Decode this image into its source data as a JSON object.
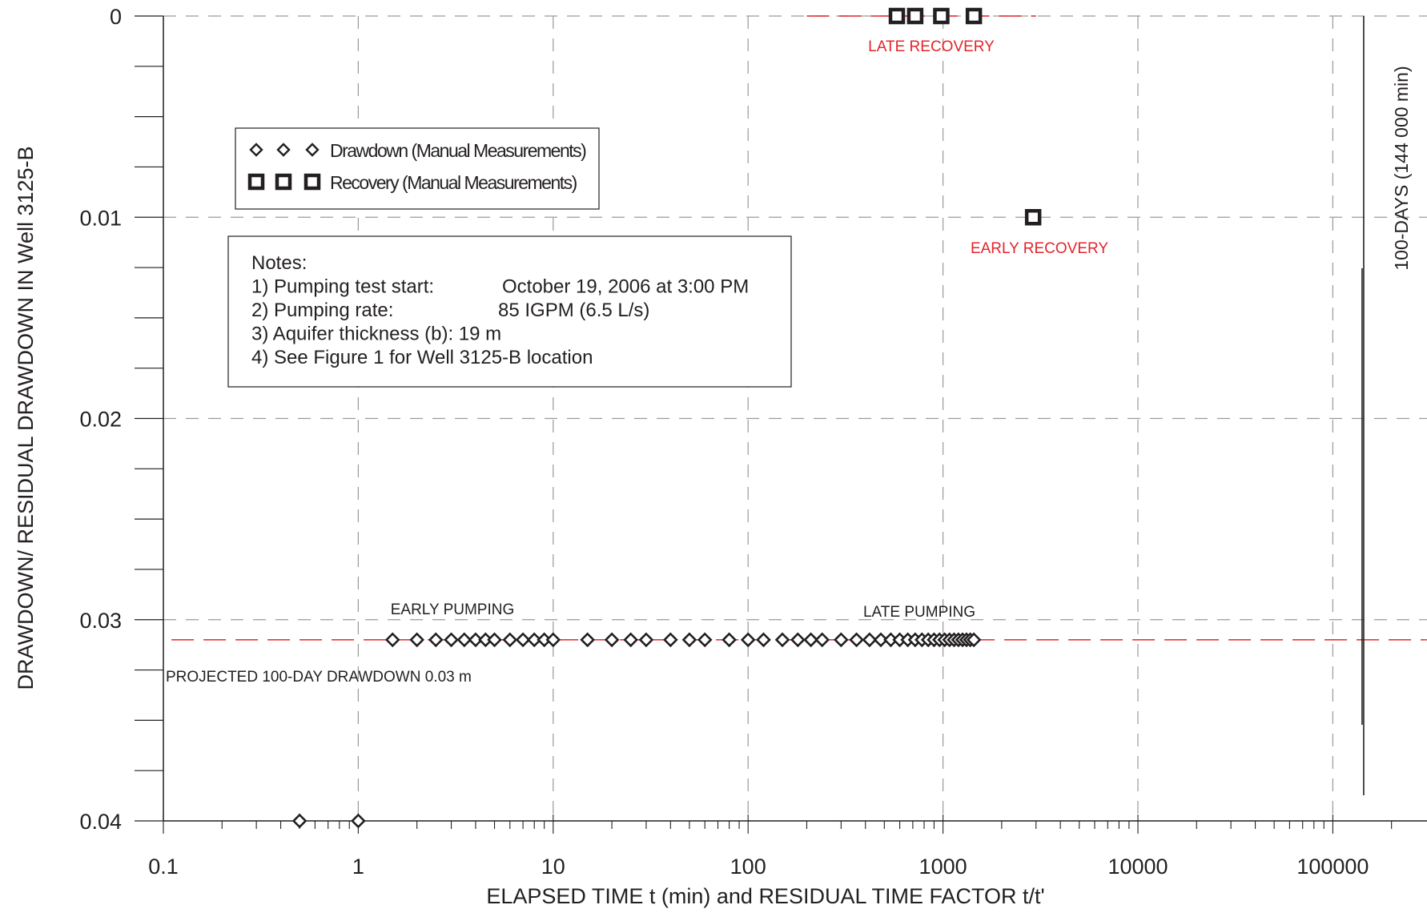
{
  "chart_data": {
    "type": "scatter",
    "x_scale": "log",
    "y_inverted": true,
    "xlim": [
      0.1,
      1000000
    ],
    "ylim": [
      0,
      0.04
    ],
    "xlabel": "ELAPSED TIME t (min) and RESIDUAL TIME FACTOR t/t'",
    "ylabel": "DRAWDOWN/ RESIDUAL DRAWDOWN IN Well 3125-B",
    "x_tick_labels": [
      "0.1",
      "1",
      "10",
      "100",
      "1000",
      "10000",
      "100000"
    ],
    "y_tick_labels": [
      "0",
      "0.01",
      "0.02",
      "0.03",
      "0.04"
    ],
    "grid": true,
    "legend_placement": "top-left",
    "series": [
      {
        "name": "Drawdown (Manual Measurements)",
        "marker": "diamond",
        "points": [
          [
            0.5,
            0.04
          ],
          [
            1,
            0.04
          ],
          [
            1.5,
            0.031
          ],
          [
            2,
            0.031
          ],
          [
            2.5,
            0.031
          ],
          [
            3,
            0.031
          ],
          [
            3.5,
            0.031
          ],
          [
            4,
            0.031
          ],
          [
            4.5,
            0.031
          ],
          [
            5,
            0.031
          ],
          [
            6,
            0.031
          ],
          [
            7,
            0.031
          ],
          [
            8,
            0.031
          ],
          [
            9,
            0.031
          ],
          [
            10,
            0.031
          ],
          [
            15,
            0.031
          ],
          [
            20,
            0.031
          ],
          [
            25,
            0.031
          ],
          [
            30,
            0.031
          ],
          [
            40,
            0.031
          ],
          [
            50,
            0.031
          ],
          [
            60,
            0.031
          ],
          [
            80,
            0.031
          ],
          [
            100,
            0.031
          ],
          [
            120,
            0.031
          ],
          [
            150,
            0.031
          ],
          [
            180,
            0.031
          ],
          [
            210,
            0.031
          ],
          [
            240,
            0.031
          ],
          [
            300,
            0.031
          ],
          [
            360,
            0.031
          ],
          [
            420,
            0.031
          ],
          [
            480,
            0.031
          ],
          [
            540,
            0.031
          ],
          [
            600,
            0.031
          ],
          [
            660,
            0.031
          ],
          [
            720,
            0.031
          ],
          [
            780,
            0.031
          ],
          [
            840,
            0.031
          ],
          [
            900,
            0.031
          ],
          [
            960,
            0.031
          ],
          [
            1020,
            0.031
          ],
          [
            1080,
            0.031
          ],
          [
            1140,
            0.031
          ],
          [
            1200,
            0.031
          ],
          [
            1260,
            0.031
          ],
          [
            1320,
            0.031
          ],
          [
            1380,
            0.031
          ],
          [
            1440,
            0.031
          ]
        ]
      },
      {
        "name": "Recovery (Manual Measurements)",
        "marker": "square",
        "points": [
          [
            580,
            0
          ],
          [
            720,
            0
          ],
          [
            980,
            0
          ],
          [
            1440,
            0
          ],
          [
            2900,
            0.01
          ]
        ]
      }
    ],
    "reference_lines": [
      {
        "type": "horizontal-dashed",
        "color": "#e3242b",
        "y": 0.031,
        "x_range": [
          0.11,
          1000000
        ]
      },
      {
        "type": "horizontal-dashed",
        "color": "#e3242b",
        "y": 0,
        "x_range": [
          200,
          3000
        ]
      },
      {
        "type": "vertical",
        "color": "#231f20",
        "x": 144000,
        "label": "100-DAYS (144 000 min)"
      }
    ],
    "annotations": {
      "late_recovery": "LATE RECOVERY",
      "early_recovery": "EARLY RECOVERY",
      "early_pumping": "EARLY PUMPING",
      "late_pumping": "LATE PUMPING",
      "projected": "PROJECTED 100-DAY DRAWDOWN 0.03 m"
    },
    "notes": [
      {
        "left": "Notes:",
        "right": ""
      },
      {
        "left": "1) Pumping test start:",
        "right": "October 19, 2006 at 3:00 PM"
      },
      {
        "left": "2) Pumping rate:",
        "right": "85 IGPM (6.5 L/s)"
      },
      {
        "left": "3) Aquifer thickness (b):  19 m",
        "right": ""
      },
      {
        "left": "4) See Figure 1 for Well 3125-B location",
        "right": ""
      }
    ],
    "colors": {
      "ink": "#231f20",
      "red": "#e3242b",
      "grid": "#9a9a9a"
    }
  }
}
